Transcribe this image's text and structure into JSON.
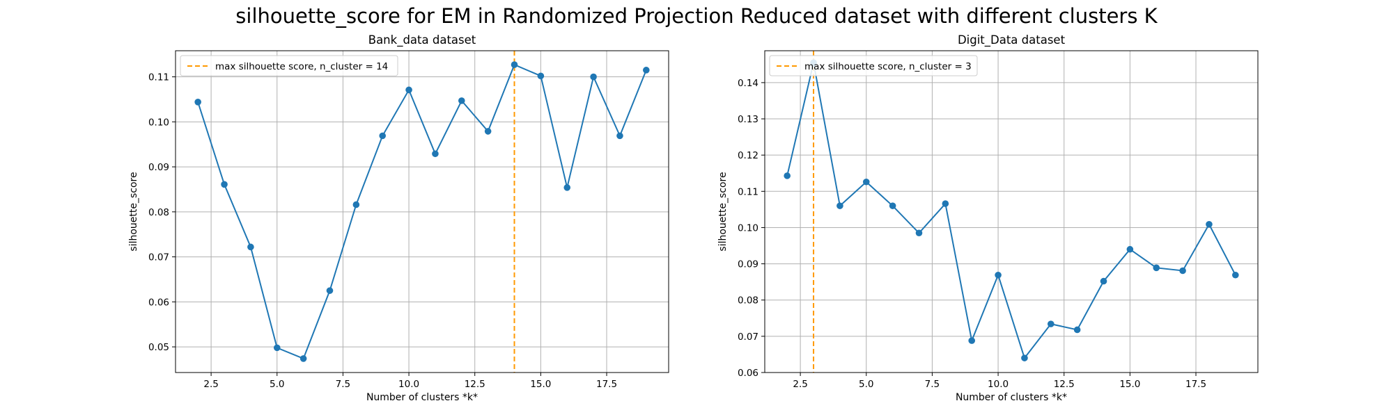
{
  "figure": {
    "suptitle": "silhouette_score for EM in Randomized Projection Reduced dataset with different clusters K"
  },
  "colors": {
    "line": "#1f77b4",
    "vline": "#ff9900",
    "grid": "#b0b0b0"
  },
  "chart_data": [
    {
      "type": "line",
      "title": "Bank_data dataset",
      "xlabel": "Number of clusters *k*",
      "ylabel": "silhouette_score",
      "xlim": [
        1.15,
        19.85
      ],
      "ylim": [
        0.0443,
        0.1158
      ],
      "xticks": [
        2.5,
        5.0,
        7.5,
        10.0,
        12.5,
        15.0,
        17.5
      ],
      "xtick_labels": [
        "2.5",
        "5.0",
        "7.5",
        "10.0",
        "12.5",
        "15.0",
        "17.5"
      ],
      "yticks": [
        0.05,
        0.06,
        0.07,
        0.08,
        0.09,
        0.1,
        0.11
      ],
      "ytick_labels": [
        "0.05",
        "0.06",
        "0.07",
        "0.08",
        "0.09",
        "0.10",
        "0.11"
      ],
      "grid": true,
      "legend": {
        "position": "upper-left",
        "label": "max silhouette score, n_cluster = 14"
      },
      "vline_x": 14,
      "x": [
        2,
        3,
        4,
        5,
        6,
        7,
        8,
        9,
        10,
        11,
        12,
        13,
        14,
        15,
        16,
        17,
        18,
        19
      ],
      "y": [
        0.1044,
        0.0861,
        0.0722,
        0.0498,
        0.0474,
        0.0625,
        0.0816,
        0.0969,
        0.1071,
        0.0929,
        0.1047,
        0.0979,
        0.1127,
        0.1102,
        0.0854,
        0.11,
        0.0969,
        0.1115
      ]
    },
    {
      "type": "line",
      "title": "Digit_Data dataset",
      "xlabel": "Number of clusters *k*",
      "ylabel": "silhouette_score",
      "xlim": [
        1.15,
        19.85
      ],
      "ylim": [
        0.06,
        0.1488
      ],
      "xticks": [
        2.5,
        5.0,
        7.5,
        10.0,
        12.5,
        15.0,
        17.5
      ],
      "xtick_labels": [
        "2.5",
        "5.0",
        "7.5",
        "10.0",
        "12.5",
        "15.0",
        "17.5"
      ],
      "yticks": [
        0.06,
        0.07,
        0.08,
        0.09,
        0.1,
        0.11,
        0.12,
        0.13,
        0.14
      ],
      "ytick_labels": [
        "0.06",
        "0.07",
        "0.08",
        "0.09",
        "0.10",
        "0.11",
        "0.12",
        "0.13",
        "0.14"
      ],
      "grid": true,
      "legend": {
        "position": "upper-left",
        "label": "max silhouette score, n_cluster = 3"
      },
      "vline_x": 3,
      "x": [
        2,
        3,
        4,
        5,
        6,
        7,
        8,
        9,
        10,
        11,
        12,
        13,
        14,
        15,
        16,
        17,
        18,
        19
      ],
      "y": [
        0.1143,
        0.1455,
        0.106,
        0.1126,
        0.106,
        0.0985,
        0.1066,
        0.0688,
        0.0869,
        0.064,
        0.0734,
        0.0718,
        0.0852,
        0.094,
        0.0889,
        0.0881,
        0.1009,
        0.0869
      ]
    }
  ]
}
